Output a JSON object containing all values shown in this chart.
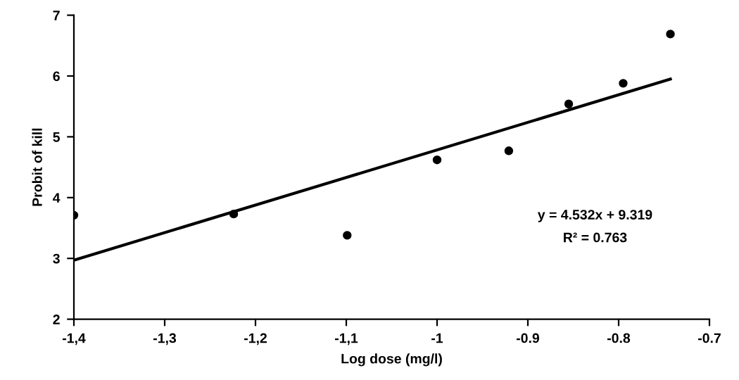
{
  "chart_data": {
    "type": "scatter",
    "xlabel": "Log dose (mg/l)",
    "ylabel": "Probit of kill",
    "xlim": [
      -1.4,
      -0.7
    ],
    "ylim": [
      2,
      7
    ],
    "xticks": [
      {
        "value": -1.4,
        "label": "-1,4"
      },
      {
        "value": -1.3,
        "label": "-1,3"
      },
      {
        "value": -1.2,
        "label": "-1,2"
      },
      {
        "value": -1.1,
        "label": "-1,1"
      },
      -1,
      -0.9,
      -0.8,
      -0.7
    ],
    "yticks": [
      2,
      3,
      4,
      5,
      6,
      7
    ],
    "grid": false,
    "series": [
      {
        "color": "#000000",
        "marker": "circle",
        "x": [
          -1.4,
          -1.224,
          -1.099,
          -1.0,
          -0.921,
          -0.855,
          -0.795,
          -0.743
        ],
        "values": [
          3.71,
          3.73,
          3.38,
          4.62,
          4.77,
          5.54,
          5.88,
          6.69
        ]
      },
      {
        "type": "line",
        "color": "#000000",
        "marker": "none",
        "line_style": "solid",
        "x": [
          -1.4,
          -0.743
        ],
        "values": [
          2.97,
          5.95
        ]
      }
    ],
    "annotations": [
      "y = 4.532x + 9.319",
      "R² = 0.763"
    ]
  }
}
